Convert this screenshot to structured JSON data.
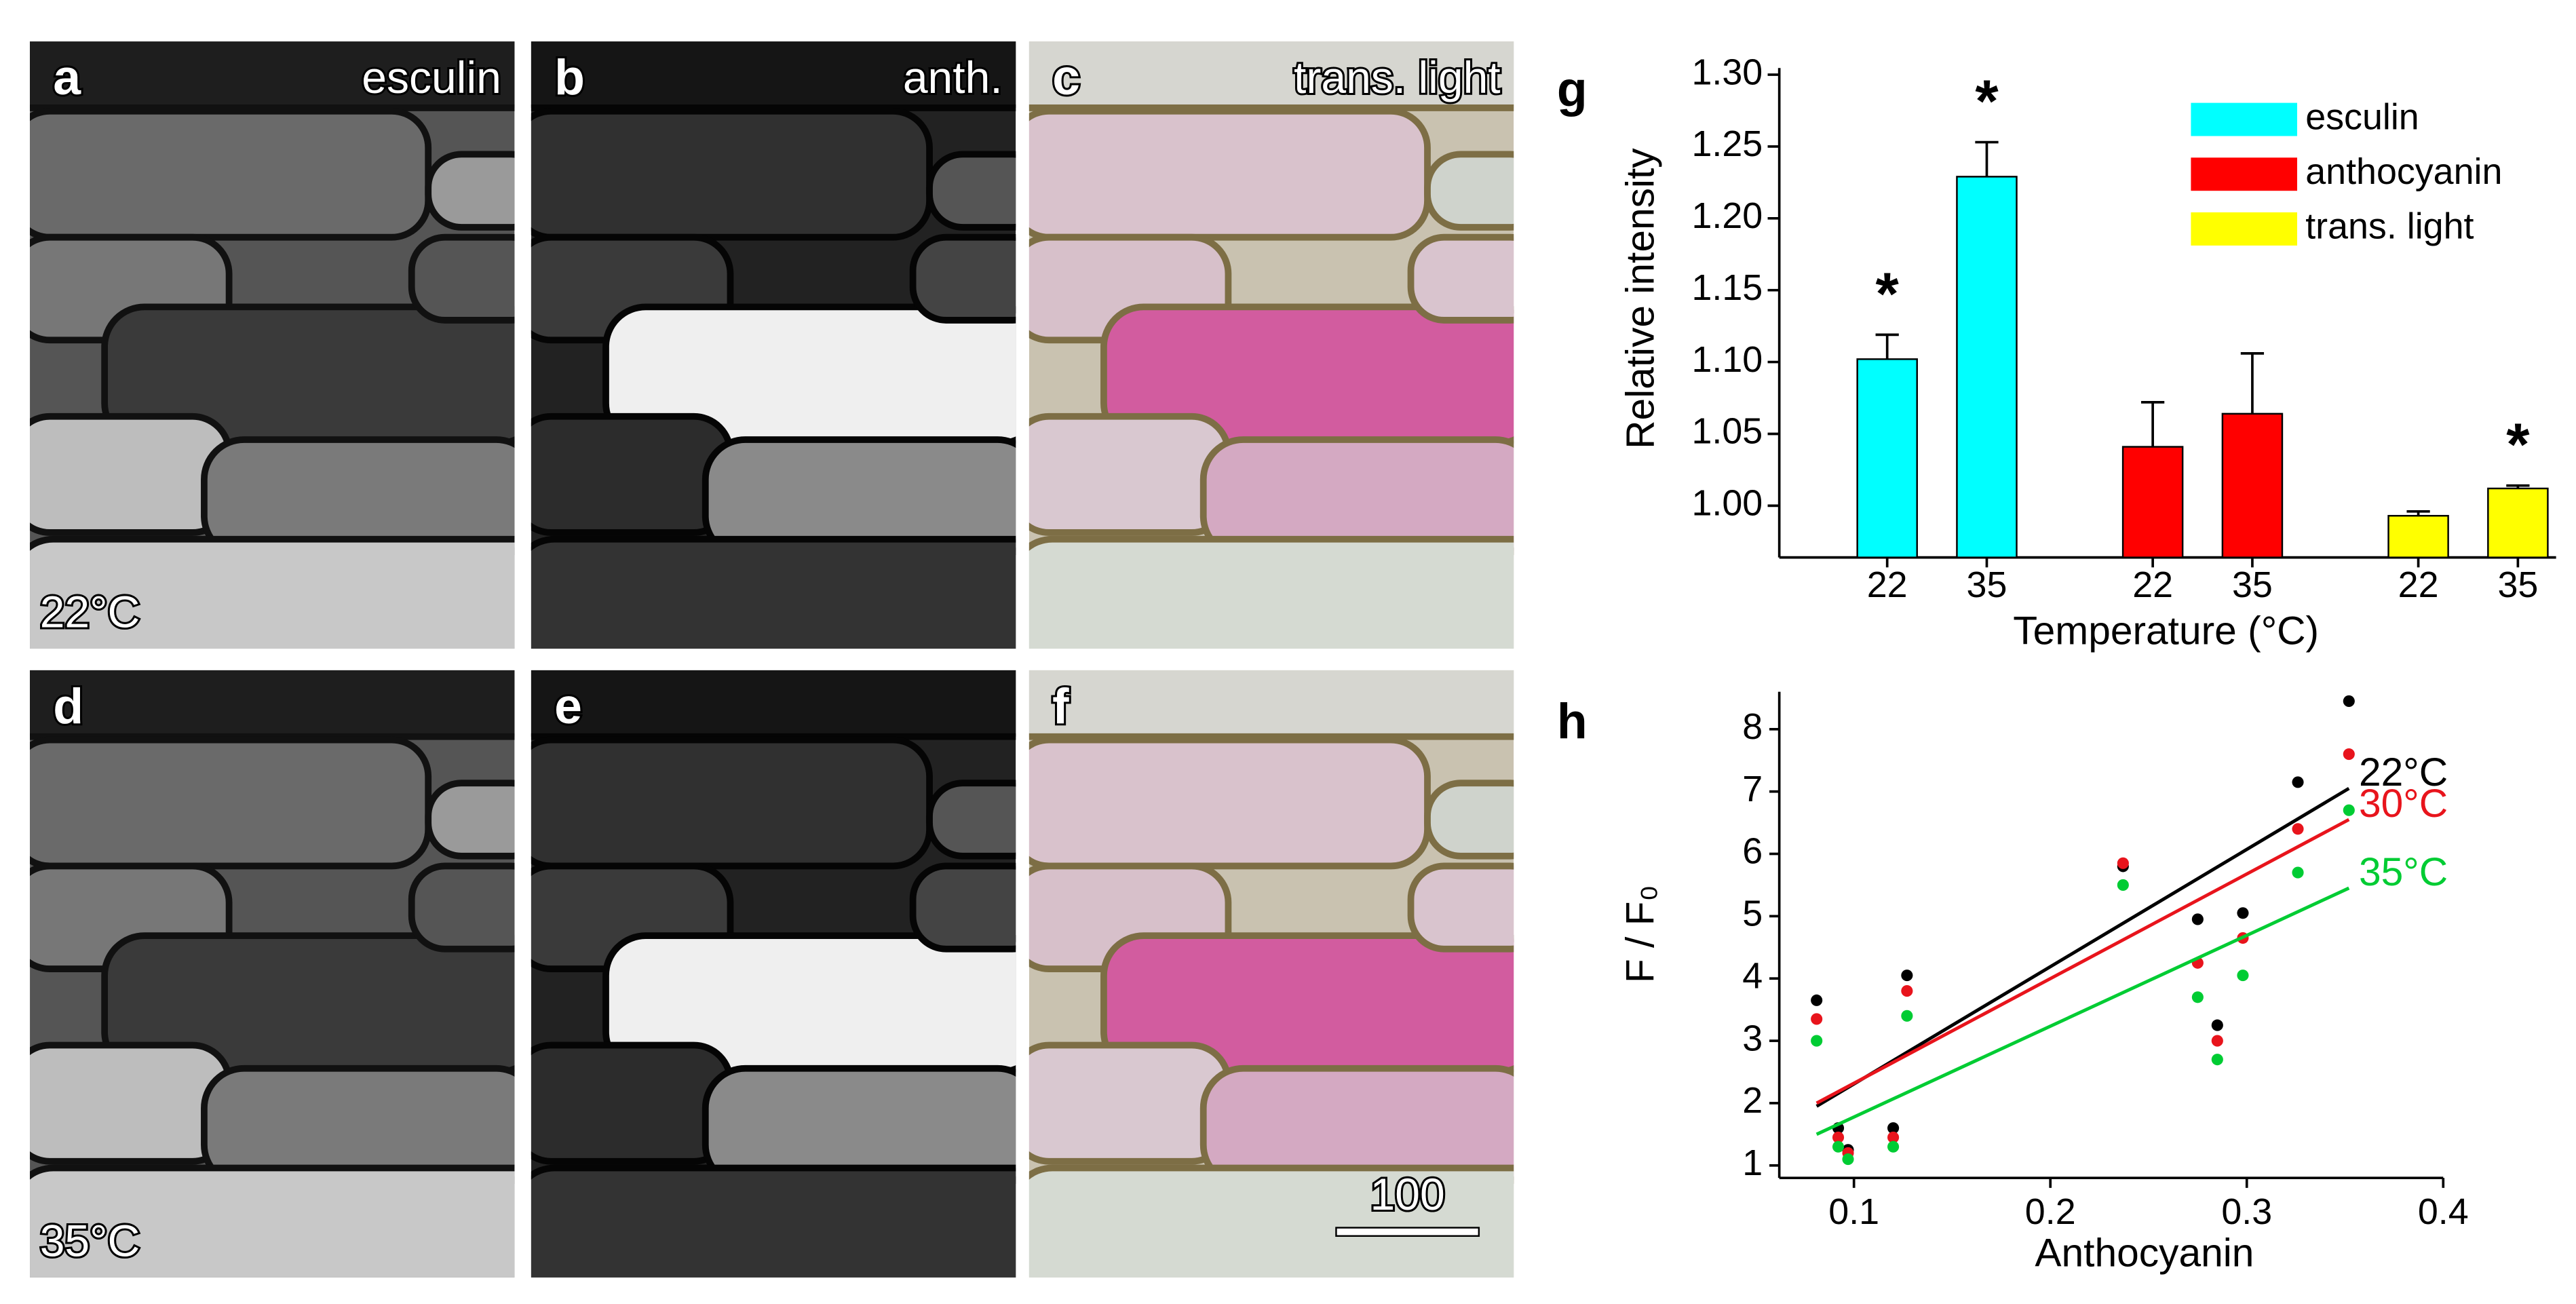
{
  "panels": [
    {
      "letter": "a",
      "label": "esculin",
      "temperature": "22°C"
    },
    {
      "letter": "b",
      "label": "anth."
    },
    {
      "letter": "c",
      "label": "trans. light"
    },
    {
      "letter": "d",
      "temperature": "35°C"
    },
    {
      "letter": "e"
    },
    {
      "letter": "f",
      "scale_bar": "100"
    }
  ],
  "chart_data": [
    {
      "type": "bar",
      "letter": "g",
      "ylabel": "Relative intensity",
      "xlabel": "Temperature (°C)",
      "categories": [
        "22",
        "35"
      ],
      "series": [
        {
          "name": "esculin",
          "color": "#00ffff",
          "values": [
            1.102,
            1.229
          ],
          "errors": [
            0.017,
            0.024
          ],
          "significant": [
            true,
            true
          ]
        },
        {
          "name": "anthocyanin",
          "color": "#ff0000",
          "values": [
            1.041,
            1.064
          ],
          "errors": [
            0.031,
            0.042
          ],
          "significant": [
            false,
            false
          ]
        },
        {
          "name": "trans. light",
          "color": "#ffff00",
          "values": [
            0.993,
            1.012
          ],
          "errors": [
            0.003,
            0.002
          ],
          "significant": [
            false,
            true
          ]
        }
      ],
      "annotation_text": "*",
      "ylim": [
        0.964,
        1.3
      ],
      "yticks": [
        {
          "value": 1,
          "label": "1.00"
        },
        1.05,
        {
          "value": 1.1,
          "label": "1.10"
        },
        1.15,
        {
          "value": 1.2,
          "label": "1.20"
        },
        1.25,
        {
          "value": 1.3,
          "label": "1.30"
        }
      ],
      "legend": "upper right"
    },
    {
      "type": "scatter",
      "letter": "h",
      "ylabel": "F / F₀",
      "xlabel": "Anthocyanin",
      "series": [
        {
          "name": "22°C",
          "color": "#000000",
          "x": [
            0.081,
            0.092,
            0.097,
            0.12,
            0.127,
            0.237,
            0.275,
            0.285,
            0.298,
            0.326,
            0.352
          ],
          "y": [
            3.65,
            1.6,
            1.25,
            1.6,
            4.05,
            5.8,
            4.95,
            3.25,
            5.05,
            7.15,
            8.45
          ],
          "fit": {
            "x": [
              0.081,
              0.352
            ],
            "y": [
              1.95,
              7.05
            ]
          }
        },
        {
          "name": "30°C",
          "color": "#e8141c",
          "x": [
            0.081,
            0.092,
            0.097,
            0.12,
            0.127,
            0.237,
            0.275,
            0.285,
            0.298,
            0.326,
            0.352
          ],
          "y": [
            3.35,
            1.45,
            1.2,
            1.45,
            3.8,
            5.85,
            4.25,
            3.0,
            4.65,
            6.4,
            7.6
          ],
          "fit": {
            "x": [
              0.081,
              0.352
            ],
            "y": [
              2.0,
              6.55
            ]
          }
        },
        {
          "name": "35°C",
          "color": "#00cc33",
          "x": [
            0.081,
            0.092,
            0.097,
            0.12,
            0.127,
            0.237,
            0.275,
            0.285,
            0.298,
            0.326,
            0.352
          ],
          "y": [
            3.0,
            1.3,
            1.1,
            1.3,
            3.4,
            5.5,
            3.7,
            2.7,
            4.05,
            5.7,
            6.7
          ],
          "fit": {
            "x": [
              0.081,
              0.352
            ],
            "y": [
              1.5,
              5.45
            ]
          }
        }
      ],
      "xlim": [
        0.062,
        0.4
      ],
      "xticks": [
        0.1,
        0.2,
        0.3,
        0.4
      ],
      "ylim": [
        0.8,
        8.6
      ],
      "yticks": [
        1,
        2,
        3,
        4,
        5,
        6,
        7,
        8
      ]
    }
  ]
}
